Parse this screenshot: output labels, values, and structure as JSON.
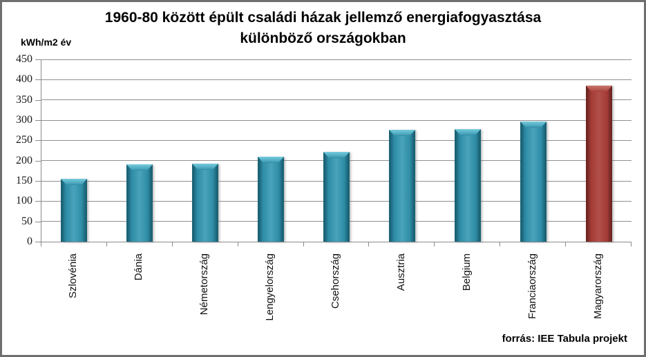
{
  "chart_data": {
    "type": "bar",
    "title": "1960-80 között épült családi házak jellemző energiafogyasztása különböző országokban",
    "ylabel": "kWh/m2 év",
    "source": "forrás: IEE Tabula projekt",
    "categories": [
      "Szlovénia",
      "Dánia",
      "Németország",
      "Lengyelország",
      "Csehország",
      "Ausztria",
      "Belgium",
      "Franciaország",
      "Magyarország"
    ],
    "values": [
      155,
      191,
      193,
      209,
      222,
      276,
      278,
      297,
      386
    ],
    "bar_color_keys": [
      "teal",
      "teal",
      "teal",
      "teal",
      "teal",
      "teal",
      "teal",
      "teal",
      "red"
    ],
    "ylim": [
      0,
      450
    ],
    "ytick_step": 50,
    "grid": true,
    "legend": false,
    "colors": {
      "teal": {
        "main": "#2E8CA6",
        "mid": "#49A3BA",
        "light": "#74CCDE",
        "dark": "#1B6275"
      },
      "red": {
        "main": "#A53B35",
        "mid": "#B1504A",
        "light": "#C9766D",
        "dark": "#6F2724"
      },
      "gridline": "#8f8f8f",
      "axis": "#8a8a8a",
      "text": "#000000"
    }
  }
}
